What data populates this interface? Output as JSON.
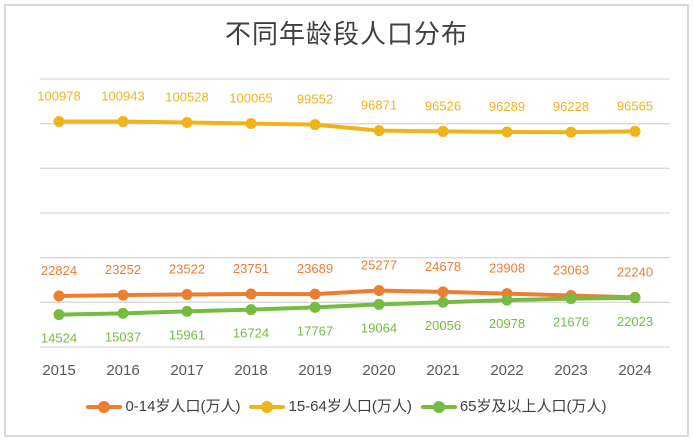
{
  "title": "不同年龄段人口分布",
  "style": {
    "background": "#FFFFFF",
    "frame_border_color": "#D9D9D9",
    "grid_color": "#D9D9D9",
    "axis_text_color": "#595959",
    "title_color": "#404040",
    "legend_text_color": "#404040"
  },
  "chart_data": {
    "type": "line",
    "title": "不同年龄段人口分布",
    "categories": [
      "2015",
      "2016",
      "2017",
      "2018",
      "2019",
      "2020",
      "2021",
      "2022",
      "2023",
      "2024"
    ],
    "series": [
      {
        "name": "0-14岁人口(万人)",
        "color": "#ED7D31",
        "values": [
          22824,
          23252,
          23522,
          23751,
          23689,
          25277,
          24678,
          23908,
          23063,
          22240
        ],
        "label_position": "above"
      },
      {
        "name": "15-64岁人口(万人)",
        "color": "#F0B41B",
        "values": [
          100978,
          100943,
          100528,
          100065,
          99552,
          96871,
          96526,
          96289,
          96228,
          96565
        ],
        "label_position": "above"
      },
      {
        "name": "65岁及以上人口(万人)",
        "color": "#76BC43",
        "values": [
          14524,
          15037,
          15961,
          16724,
          17767,
          19064,
          20056,
          20978,
          21676,
          22023
        ],
        "label_position": "below"
      }
    ],
    "ylim": [
      0,
      120000
    ],
    "gridline_step": 20000,
    "grid": true,
    "y_axis_labels_shown": false,
    "x_axis_labels_shown": true,
    "data_labels": true,
    "legend_position": "bottom",
    "marker": "circle"
  }
}
